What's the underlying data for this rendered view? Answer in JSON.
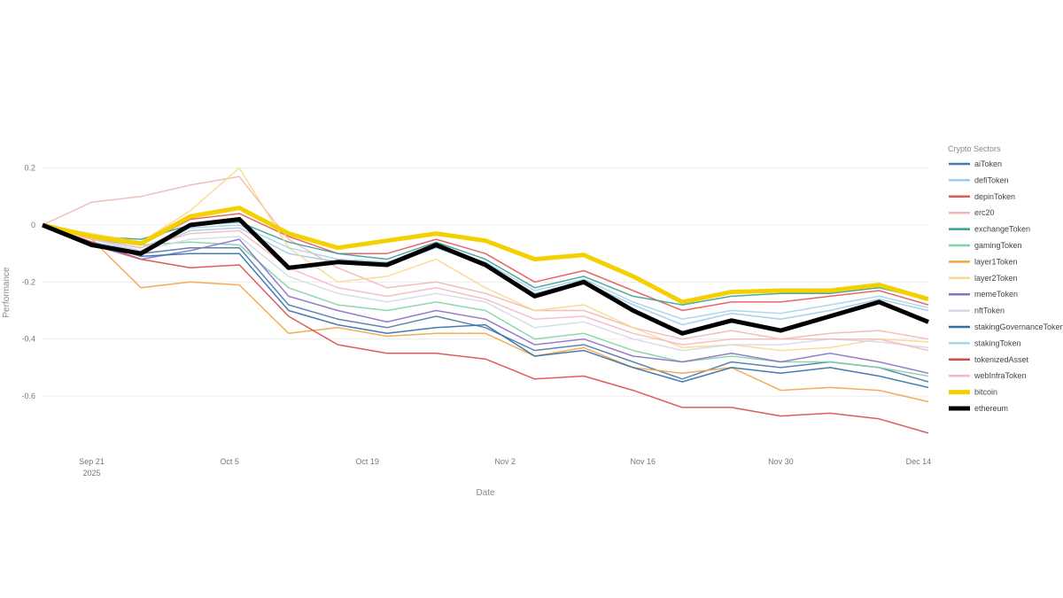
{
  "chart_data": {
    "type": "line",
    "xlabel": "Date",
    "ylabel": "Performance",
    "legend_title": "Crypto Sectors",
    "legend_position": "right",
    "grid": true,
    "ylim": [
      -0.78,
      0.32
    ],
    "xlim": [
      "2025-09-16",
      "2025-12-15"
    ],
    "y_ticks": [
      0.2,
      0,
      -0.2,
      -0.4,
      -0.6
    ],
    "y_tick_labels": [
      "0.2",
      "0",
      "-0.2",
      "-0.4",
      "-0.6"
    ],
    "x_ticks": [
      {
        "date": "2025-09-21",
        "label": "Sep 21",
        "sublabel": "2025"
      },
      {
        "date": "2025-10-05",
        "label": "Oct 5",
        "sublabel": ""
      },
      {
        "date": "2025-10-19",
        "label": "Oct 19",
        "sublabel": ""
      },
      {
        "date": "2025-11-02",
        "label": "Nov 2",
        "sublabel": ""
      },
      {
        "date": "2025-11-16",
        "label": "Nov 16",
        "sublabel": ""
      },
      {
        "date": "2025-11-30",
        "label": "Nov 30",
        "sublabel": ""
      },
      {
        "date": "2025-12-14",
        "label": "Dec 14",
        "sublabel": ""
      }
    ],
    "x": [
      "2025-09-16",
      "2025-09-21",
      "2025-09-26",
      "2025-10-01",
      "2025-10-06",
      "2025-10-11",
      "2025-10-16",
      "2025-10-21",
      "2025-10-26",
      "2025-10-31",
      "2025-11-05",
      "2025-11-10",
      "2025-11-15",
      "2025-11-20",
      "2025-11-25",
      "2025-11-30",
      "2025-12-05",
      "2025-12-10",
      "2025-12-15"
    ],
    "series": [
      {
        "name": "aiToken",
        "color": "#4c78a8",
        "width": 1.5,
        "values": [
          0,
          -0.06,
          -0.1,
          -0.08,
          -0.08,
          -0.28,
          -0.33,
          -0.36,
          -0.32,
          -0.36,
          -0.44,
          -0.42,
          -0.48,
          -0.54,
          -0.48,
          -0.5,
          -0.48,
          -0.5,
          -0.55
        ]
      },
      {
        "name": "defiToken",
        "color": "#9ecae9",
        "width": 1.5,
        "values": [
          0,
          -0.06,
          -0.09,
          -0.02,
          -0.01,
          -0.1,
          -0.13,
          -0.14,
          -0.08,
          -0.14,
          -0.24,
          -0.2,
          -0.28,
          -0.35,
          -0.31,
          -0.33,
          -0.3,
          -0.26,
          -0.3
        ]
      },
      {
        "name": "depinToken",
        "color": "#e45756",
        "width": 1.5,
        "values": [
          0,
          -0.05,
          -0.07,
          0.02,
          0.04,
          -0.04,
          -0.1,
          -0.1,
          -0.05,
          -0.1,
          -0.2,
          -0.16,
          -0.23,
          -0.3,
          -0.27,
          -0.27,
          -0.25,
          -0.23,
          -0.28
        ]
      },
      {
        "name": "erc20",
        "color": "#f4b6b2",
        "width": 1.5,
        "values": [
          0,
          0.08,
          0.1,
          0.14,
          0.17,
          -0.05,
          -0.15,
          -0.22,
          -0.2,
          -0.24,
          -0.3,
          -0.3,
          -0.36,
          -0.4,
          -0.37,
          -0.4,
          -0.38,
          -0.37,
          -0.4
        ]
      },
      {
        "name": "exchangeToken",
        "color": "#3a9e98",
        "width": 1.5,
        "values": [
          0,
          -0.04,
          -0.05,
          0.0,
          0.01,
          -0.06,
          -0.1,
          -0.12,
          -0.06,
          -0.12,
          -0.22,
          -0.18,
          -0.25,
          -0.28,
          -0.25,
          -0.24,
          -0.24,
          -0.22,
          -0.26
        ]
      },
      {
        "name": "gamingToken",
        "color": "#7fd3a6",
        "width": 1.5,
        "values": [
          0,
          -0.05,
          -0.07,
          -0.06,
          -0.07,
          -0.22,
          -0.28,
          -0.3,
          -0.27,
          -0.3,
          -0.4,
          -0.38,
          -0.44,
          -0.48,
          -0.46,
          -0.48,
          -0.48,
          -0.5,
          -0.53
        ]
      },
      {
        "name": "layer1Token",
        "color": "#f2a444",
        "width": 1.5,
        "values": [
          0,
          -0.05,
          -0.22,
          -0.2,
          -0.21,
          -0.38,
          -0.36,
          -0.39,
          -0.38,
          -0.38,
          -0.46,
          -0.43,
          -0.5,
          -0.52,
          -0.5,
          -0.58,
          -0.57,
          -0.58,
          -0.62
        ]
      },
      {
        "name": "layer2Token",
        "color": "#f7d98a",
        "width": 1.5,
        "values": [
          0,
          -0.03,
          -0.06,
          0.05,
          0.2,
          -0.08,
          -0.2,
          -0.18,
          -0.12,
          -0.22,
          -0.3,
          -0.28,
          -0.36,
          -0.43,
          -0.42,
          -0.44,
          -0.43,
          -0.4,
          -0.41
        ]
      },
      {
        "name": "memeToken",
        "color": "#8b6fc7",
        "width": 1.5,
        "values": [
          0,
          -0.07,
          -0.12,
          -0.09,
          -0.05,
          -0.25,
          -0.3,
          -0.34,
          -0.3,
          -0.33,
          -0.42,
          -0.4,
          -0.46,
          -0.48,
          -0.45,
          -0.48,
          -0.45,
          -0.48,
          -0.52
        ]
      },
      {
        "name": "nftToken",
        "color": "#d3d9e6",
        "width": 1.5,
        "values": [
          0,
          -0.05,
          -0.09,
          -0.05,
          -0.04,
          -0.18,
          -0.24,
          -0.27,
          -0.24,
          -0.27,
          -0.36,
          -0.34,
          -0.4,
          -0.44,
          -0.42,
          -0.42,
          -0.4,
          -0.41,
          -0.43
        ]
      },
      {
        "name": "stakingGovernanceToken",
        "color": "#2f6fa8",
        "width": 1.5,
        "values": [
          0,
          -0.06,
          -0.11,
          -0.1,
          -0.1,
          -0.3,
          -0.35,
          -0.38,
          -0.36,
          -0.35,
          -0.46,
          -0.44,
          -0.5,
          -0.55,
          -0.5,
          -0.52,
          -0.5,
          -0.53,
          -0.57
        ]
      },
      {
        "name": "stakingToken",
        "color": "#a7d3e8",
        "width": 1.5,
        "values": [
          0,
          -0.05,
          -0.08,
          -0.01,
          0.0,
          -0.08,
          -0.12,
          -0.13,
          -0.08,
          -0.13,
          -0.23,
          -0.19,
          -0.27,
          -0.33,
          -0.3,
          -0.31,
          -0.28,
          -0.25,
          -0.29
        ]
      },
      {
        "name": "tokenizedAsset",
        "color": "#d94a4a",
        "width": 1.5,
        "values": [
          0,
          -0.06,
          -0.12,
          -0.15,
          -0.14,
          -0.32,
          -0.42,
          -0.45,
          -0.45,
          -0.47,
          -0.54,
          -0.53,
          -0.58,
          -0.64,
          -0.64,
          -0.67,
          -0.66,
          -0.68,
          -0.73
        ]
      },
      {
        "name": "webInfraToken",
        "color": "#f5b8c0",
        "width": 1.5,
        "values": [
          0,
          -0.05,
          -0.08,
          -0.03,
          -0.02,
          -0.15,
          -0.22,
          -0.25,
          -0.22,
          -0.26,
          -0.33,
          -0.32,
          -0.38,
          -0.42,
          -0.4,
          -0.4,
          -0.4,
          -0.4,
          -0.44
        ]
      },
      {
        "name": "bitcoin",
        "color": "#f5d000",
        "width": 5,
        "values": [
          0,
          -0.04,
          -0.065,
          0.03,
          0.06,
          -0.03,
          -0.08,
          -0.055,
          -0.03,
          -0.055,
          -0.12,
          -0.105,
          -0.18,
          -0.27,
          -0.235,
          -0.23,
          -0.23,
          -0.21,
          -0.26
        ]
      },
      {
        "name": "ethereum",
        "color": "#000000",
        "width": 5,
        "values": [
          0,
          -0.07,
          -0.1,
          0,
          0.02,
          -0.15,
          -0.13,
          -0.14,
          -0.07,
          -0.14,
          -0.25,
          -0.2,
          -0.3,
          -0.38,
          -0.335,
          -0.37,
          -0.32,
          -0.27,
          -0.34
        ]
      }
    ]
  }
}
